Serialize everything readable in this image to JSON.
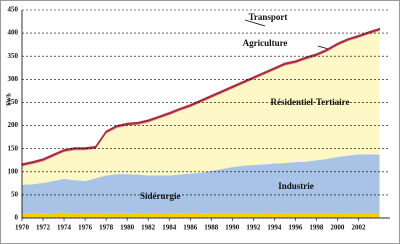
{
  "chart_data": {
    "type": "stacked_area",
    "y_label": "TWh",
    "x": [
      1970,
      1971,
      1972,
      1973,
      1974,
      1975,
      1976,
      1977,
      1978,
      1979,
      1980,
      1981,
      1982,
      1983,
      1984,
      1985,
      1986,
      1987,
      1988,
      1989,
      1990,
      1991,
      1992,
      1993,
      1994,
      1995,
      1996,
      1997,
      1998,
      1999,
      2000,
      2001,
      2002,
      2003,
      2004
    ],
    "xlim": [
      1970,
      2005
    ],
    "xticks": [
      1970,
      1972,
      1974,
      1976,
      1978,
      1980,
      1982,
      1984,
      1986,
      1988,
      1990,
      1992,
      1994,
      1996,
      1998,
      2000,
      2002
    ],
    "ylim": [
      0,
      450
    ],
    "yticks": [
      0,
      50,
      100,
      150,
      200,
      250,
      300,
      350,
      400,
      450
    ],
    "grid": true,
    "series": [
      {
        "name": "Sidérurgie",
        "color": "#f2d000",
        "values": [
          9,
          10,
          10,
          11,
          12,
          10,
          10,
          10,
          11,
          11,
          11,
          10,
          9,
          9,
          10,
          10,
          9,
          9,
          10,
          10,
          10,
          10,
          10,
          9,
          9,
          10,
          10,
          10,
          10,
          10,
          10,
          9,
          9,
          9,
          9
        ]
      },
      {
        "name": "Industrie",
        "color": "#a9c3e6",
        "values": [
          63,
          63,
          66,
          69,
          73,
          72,
          70,
          76,
          81,
          84,
          84,
          84,
          83,
          83,
          82,
          84,
          87,
          89,
          92,
          96,
          100,
          103,
          105,
          107,
          109,
          109,
          111,
          112,
          115,
          118,
          122,
          126,
          129,
          129,
          128
        ]
      },
      {
        "name": "Résidentiel-Tertiaire",
        "color": "#fdf8c6",
        "values": [
          39,
          43,
          46,
          52,
          57,
          64,
          66,
          63,
          90,
          99,
          104,
          107,
          114,
          122,
          130,
          137,
          143,
          151,
          157,
          163,
          169,
          176,
          184,
          193,
          201,
          210,
          213,
          220,
          224,
          231,
          240,
          247,
          251,
          259,
          267
        ]
      },
      {
        "name": "Agriculture",
        "color": "#f3b3b8",
        "values": [
          3,
          3,
          3,
          3,
          3,
          3,
          3,
          3,
          3,
          3,
          3,
          3,
          3,
          3,
          3,
          3,
          3,
          3,
          3,
          3,
          3,
          3,
          3,
          3,
          3,
          3,
          3,
          3,
          3,
          3,
          3,
          3,
          3,
          3,
          3
        ]
      },
      {
        "name": "Transport",
        "color": "#a8303c",
        "values": [
          3,
          3,
          3,
          3,
          3,
          3,
          3,
          3,
          3,
          3,
          3,
          3,
          3,
          3,
          3,
          3,
          3,
          3,
          3,
          3,
          3,
          3,
          3,
          3,
          3,
          3,
          3,
          3,
          3,
          3,
          3,
          3,
          3,
          3,
          3
        ]
      }
    ]
  }
}
